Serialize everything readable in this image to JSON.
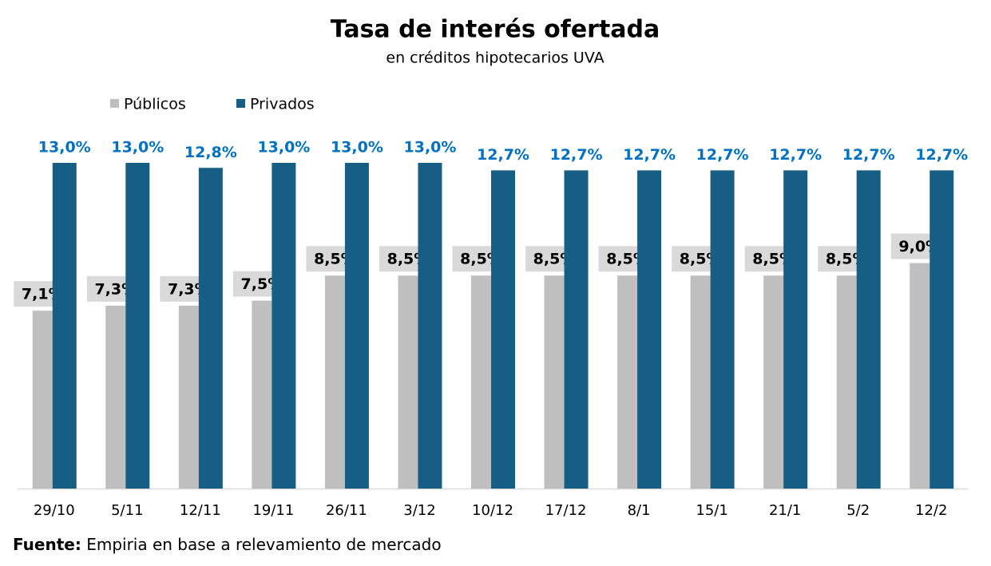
{
  "chart_data": {
    "type": "bar",
    "title": "Tasa de interés ofertada",
    "subtitle": "en créditos hipotecarios UVA",
    "categories": [
      "29/10",
      "5/11",
      "12/11",
      "19/11",
      "26/11",
      "3/12",
      "10/12",
      "17/12",
      "8/1",
      "15/1",
      "21/1",
      "5/2",
      "12/2"
    ],
    "series": [
      {
        "name": "Públicos",
        "color": "#bfbfbf",
        "values": [
          7.1,
          7.3,
          7.3,
          7.5,
          8.5,
          8.5,
          8.5,
          8.5,
          8.5,
          8.5,
          8.5,
          8.5,
          9.0
        ],
        "value_labels": [
          "7,1%",
          "7,3%",
          "7,3%",
          "7,5%",
          "8,5%",
          "8,5%",
          "8,5%",
          "8,5%",
          "8,5%",
          "8,5%",
          "8,5%",
          "8,5%",
          "9,0%"
        ]
      },
      {
        "name": "Privados",
        "color": "#175e84",
        "values": [
          13.0,
          13.0,
          12.8,
          13.0,
          13.0,
          13.0,
          12.7,
          12.7,
          12.7,
          12.7,
          12.7,
          12.7,
          12.7
        ],
        "value_labels": [
          "13,0%",
          "13,0%",
          "12,8%",
          "13,0%",
          "13,0%",
          "13,0%",
          "12,7%",
          "12,7%",
          "12,7%",
          "12,7%",
          "12,7%",
          "12,7%",
          "12,7%"
        ]
      }
    ],
    "source_label": "Fuente:",
    "source": "Empiria en base a relevamiento de mercado"
  }
}
